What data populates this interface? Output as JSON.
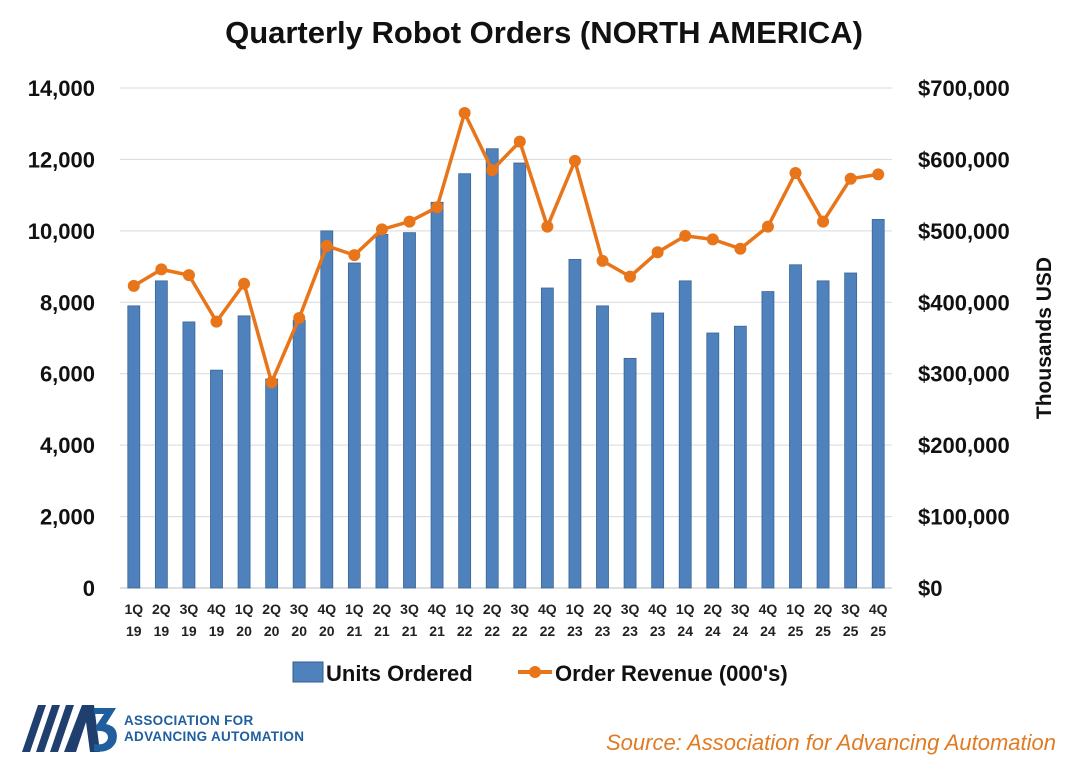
{
  "chart_data": {
    "type": "bar",
    "title": "Quarterly Robot Orders (NORTH AMERICA)",
    "categories": [
      [
        "1Q",
        "19"
      ],
      [
        "2Q",
        "19"
      ],
      [
        "3Q",
        "19"
      ],
      [
        "4Q",
        "19"
      ],
      [
        "1Q",
        "20"
      ],
      [
        "2Q",
        "20"
      ],
      [
        "3Q",
        "20"
      ],
      [
        "4Q",
        "20"
      ],
      [
        "1Q",
        "21"
      ],
      [
        "2Q",
        "21"
      ],
      [
        "3Q",
        "21"
      ],
      [
        "4Q",
        "21"
      ],
      [
        "1Q",
        "22"
      ],
      [
        "2Q",
        "22"
      ],
      [
        "3Q",
        "22"
      ],
      [
        "4Q",
        "22"
      ],
      [
        "1Q",
        "23"
      ],
      [
        "2Q",
        "23"
      ],
      [
        "3Q",
        "23"
      ],
      [
        "4Q",
        "23"
      ],
      [
        "1Q",
        "24"
      ],
      [
        "2Q",
        "24"
      ],
      [
        "3Q",
        "24"
      ],
      [
        "4Q",
        "24"
      ],
      [
        "1Q",
        "25"
      ],
      [
        "2Q",
        "25"
      ],
      [
        "3Q",
        "25"
      ],
      [
        "4Q",
        "25"
      ]
    ],
    "series": [
      {
        "name": "Units Ordered",
        "type": "bar",
        "axis": "left",
        "color": "#4f81bd",
        "values": [
          7900,
          8600,
          7450,
          6100,
          7620,
          5850,
          7500,
          10000,
          9100,
          9900,
          9950,
          10800,
          11600,
          12300,
          11900,
          8400,
          9200,
          7900,
          6430,
          7700,
          8600,
          7140,
          7330,
          8300,
          9050,
          8600,
          8820,
          10320
        ]
      },
      {
        "name": "Order Revenue (000's)",
        "type": "line",
        "axis": "right",
        "color": "#e8751a",
        "values": [
          423000,
          446000,
          438000,
          373000,
          426000,
          288000,
          378000,
          479000,
          466000,
          502000,
          513000,
          533000,
          665000,
          585000,
          625000,
          506000,
          598000,
          458000,
          436000,
          470000,
          493000,
          488000,
          475000,
          506000,
          581000,
          513000,
          573000,
          579000
        ]
      }
    ],
    "left_axis": {
      "ylim": [
        0,
        14000
      ],
      "ticks": [
        "0",
        "2,000",
        "4,000",
        "6,000",
        "8,000",
        "10,000",
        "12,000",
        "14,000"
      ]
    },
    "right_axis": {
      "ylabel": "Thousands USD",
      "ylim": [
        0,
        700000
      ],
      "ticks": [
        "$0",
        "$100,000",
        "$200,000",
        "$300,000",
        "$400,000",
        "$500,000",
        "$600,000",
        "$700,000"
      ]
    },
    "grid": true,
    "legend": [
      "Units Ordered",
      "Order Revenue (000's)"
    ],
    "legend_position": "bottom"
  },
  "logo": {
    "line1": "ASSOCIATION FOR",
    "line2": "ADVANCING AUTOMATION"
  },
  "source": "Source: Association for Advancing Automation"
}
